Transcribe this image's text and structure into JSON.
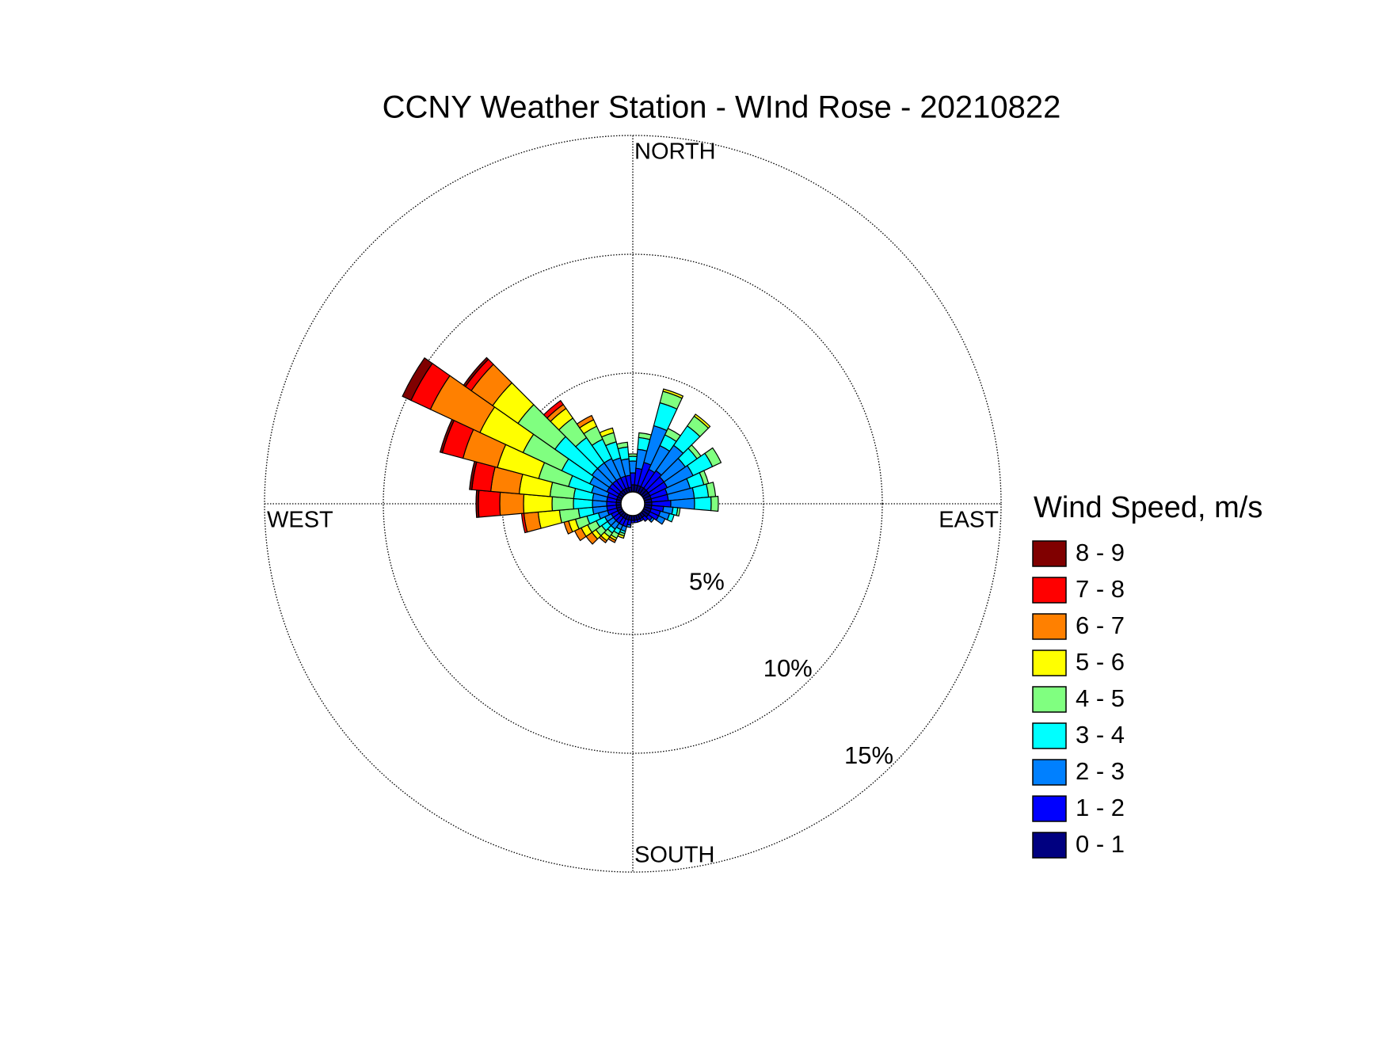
{
  "chart_data": {
    "type": "windrose",
    "title": "CCNY Weather Station - WInd Rose - 20210822",
    "legend_title": "Wind Speed, m/s",
    "direction_labels": {
      "north": "NORTH",
      "east": "EAST",
      "south": "SOUTH",
      "west": "WEST"
    },
    "x": [
      0,
      10,
      20,
      30,
      40,
      50,
      60,
      70,
      80,
      90,
      100,
      110,
      120,
      130,
      140,
      150,
      160,
      170,
      180,
      190,
      200,
      210,
      220,
      230,
      240,
      250,
      260,
      270,
      280,
      290,
      300,
      310,
      320,
      330,
      340,
      350
    ],
    "rlim": [
      0,
      15
    ],
    "rticks": [
      {
        "value": 5,
        "label": "5%"
      },
      {
        "value": 10,
        "label": "10%"
      },
      {
        "value": 15,
        "label": "15%"
      }
    ],
    "grid": true,
    "series": [
      {
        "name": "0 - 1",
        "color": "#000080",
        "values": [
          0.3,
          0.3,
          0.3,
          0.3,
          0.3,
          0.3,
          0.3,
          0.3,
          0.3,
          0.3,
          0.3,
          0.3,
          0.3,
          0.3,
          0.2,
          0.2,
          0.2,
          0.2,
          0.2,
          0.2,
          0.2,
          0.2,
          0.2,
          0.2,
          0.2,
          0.2,
          0.2,
          0.2,
          0.2,
          0.2,
          0.2,
          0.2,
          0.2,
          0.2,
          0.2,
          0.2
        ]
      },
      {
        "name": "1 - 2",
        "color": "#0000ff",
        "values": [
          0.5,
          0.7,
          1.0,
          0.8,
          0.9,
          0.8,
          0.8,
          0.7,
          0.7,
          0.8,
          0.5,
          0.4,
          0.4,
          0.2,
          0.2,
          0.1,
          0.1,
          0.1,
          0.1,
          0.2,
          0.3,
          0.3,
          0.3,
          0.3,
          0.3,
          0.4,
          0.4,
          0.4,
          0.4,
          0.4,
          0.5,
          0.5,
          0.5,
          0.5,
          0.5,
          0.5
        ]
      },
      {
        "name": "2 - 3",
        "color": "#0080ff",
        "values": [
          0.5,
          0.8,
          1.6,
          1.1,
          1.3,
          1.1,
          1.2,
          1.0,
          1.1,
          1.0,
          0.4,
          0.4,
          0.3,
          0.1,
          0,
          0,
          0,
          0,
          0,
          0.1,
          0.2,
          0.2,
          0.3,
          0.3,
          0.3,
          0.4,
          0.6,
          0.6,
          0.6,
          0.7,
          0.8,
          0.9,
          0.9,
          0.9,
          0.8,
          0.7
        ]
      },
      {
        "name": "3 - 4",
        "color": "#00ffff",
        "values": [
          0.2,
          0.5,
          1.0,
          0.5,
          1.0,
          0.6,
          0.9,
          0.6,
          0.6,
          0.7,
          0.2,
          0.2,
          0,
          0,
          0,
          0,
          0,
          0,
          0,
          0,
          0.1,
          0.2,
          0.2,
          0.3,
          0.4,
          0.5,
          0.6,
          0.8,
          0.8,
          1.0,
          1.3,
          1.9,
          1.3,
          0.9,
          0.7,
          0.5
        ]
      },
      {
        "name": "4 - 5",
        "color": "#80ff80",
        "values": [
          0.1,
          0.2,
          0.5,
          0.3,
          0.5,
          0.2,
          0.4,
          0.2,
          0.3,
          0.3,
          0.1,
          0,
          0,
          0,
          0,
          0,
          0,
          0,
          0,
          0,
          0.1,
          0.2,
          0.2,
          0.3,
          0.4,
          0.5,
          0.8,
          0.9,
          1.0,
          1.3,
          1.8,
          1.9,
          1.0,
          0.6,
          0.4,
          0.2
        ]
      },
      {
        "name": "5 - 6",
        "color": "#ffff00",
        "values": [
          0,
          0,
          0.1,
          0,
          0.1,
          0,
          0,
          0,
          0,
          0,
          0,
          0,
          0,
          0,
          0,
          0,
          0,
          0,
          0,
          0,
          0.1,
          0.1,
          0.2,
          0.2,
          0.3,
          0.3,
          0.9,
          1.2,
          1.3,
          1.8,
          2.0,
          1.3,
          0.5,
          0.3,
          0.2,
          0
        ]
      },
      {
        "name": "6 - 7",
        "color": "#ff8000",
        "values": [
          0,
          0,
          0,
          0,
          0,
          0,
          0,
          0,
          0,
          0,
          0,
          0,
          0,
          0,
          0,
          0,
          0,
          0,
          0,
          0,
          0,
          0.1,
          0.1,
          0.3,
          0.3,
          0.2,
          0.6,
          1.0,
          1.2,
          1.5,
          2.3,
          1.1,
          0.2,
          0.2,
          0,
          0
        ]
      },
      {
        "name": "7 - 8",
        "color": "#ff0000",
        "values": [
          0,
          0,
          0,
          0,
          0,
          0,
          0,
          0,
          0,
          0,
          0,
          0,
          0,
          0,
          0,
          0,
          0,
          0,
          0,
          0,
          0,
          0,
          0,
          0,
          0,
          0,
          0.1,
          0.9,
          0.8,
          0.9,
          0.9,
          0.3,
          0.2,
          0,
          0,
          0
        ]
      },
      {
        "name": "8 - 9",
        "color": "#800000",
        "values": [
          0,
          0,
          0,
          0,
          0,
          0,
          0,
          0,
          0,
          0,
          0,
          0,
          0,
          0,
          0,
          0,
          0,
          0,
          0,
          0,
          0,
          0,
          0,
          0,
          0,
          0,
          0,
          0.1,
          0.1,
          0.1,
          0.4,
          0.1,
          0,
          0,
          0,
          0
        ]
      }
    ]
  }
}
